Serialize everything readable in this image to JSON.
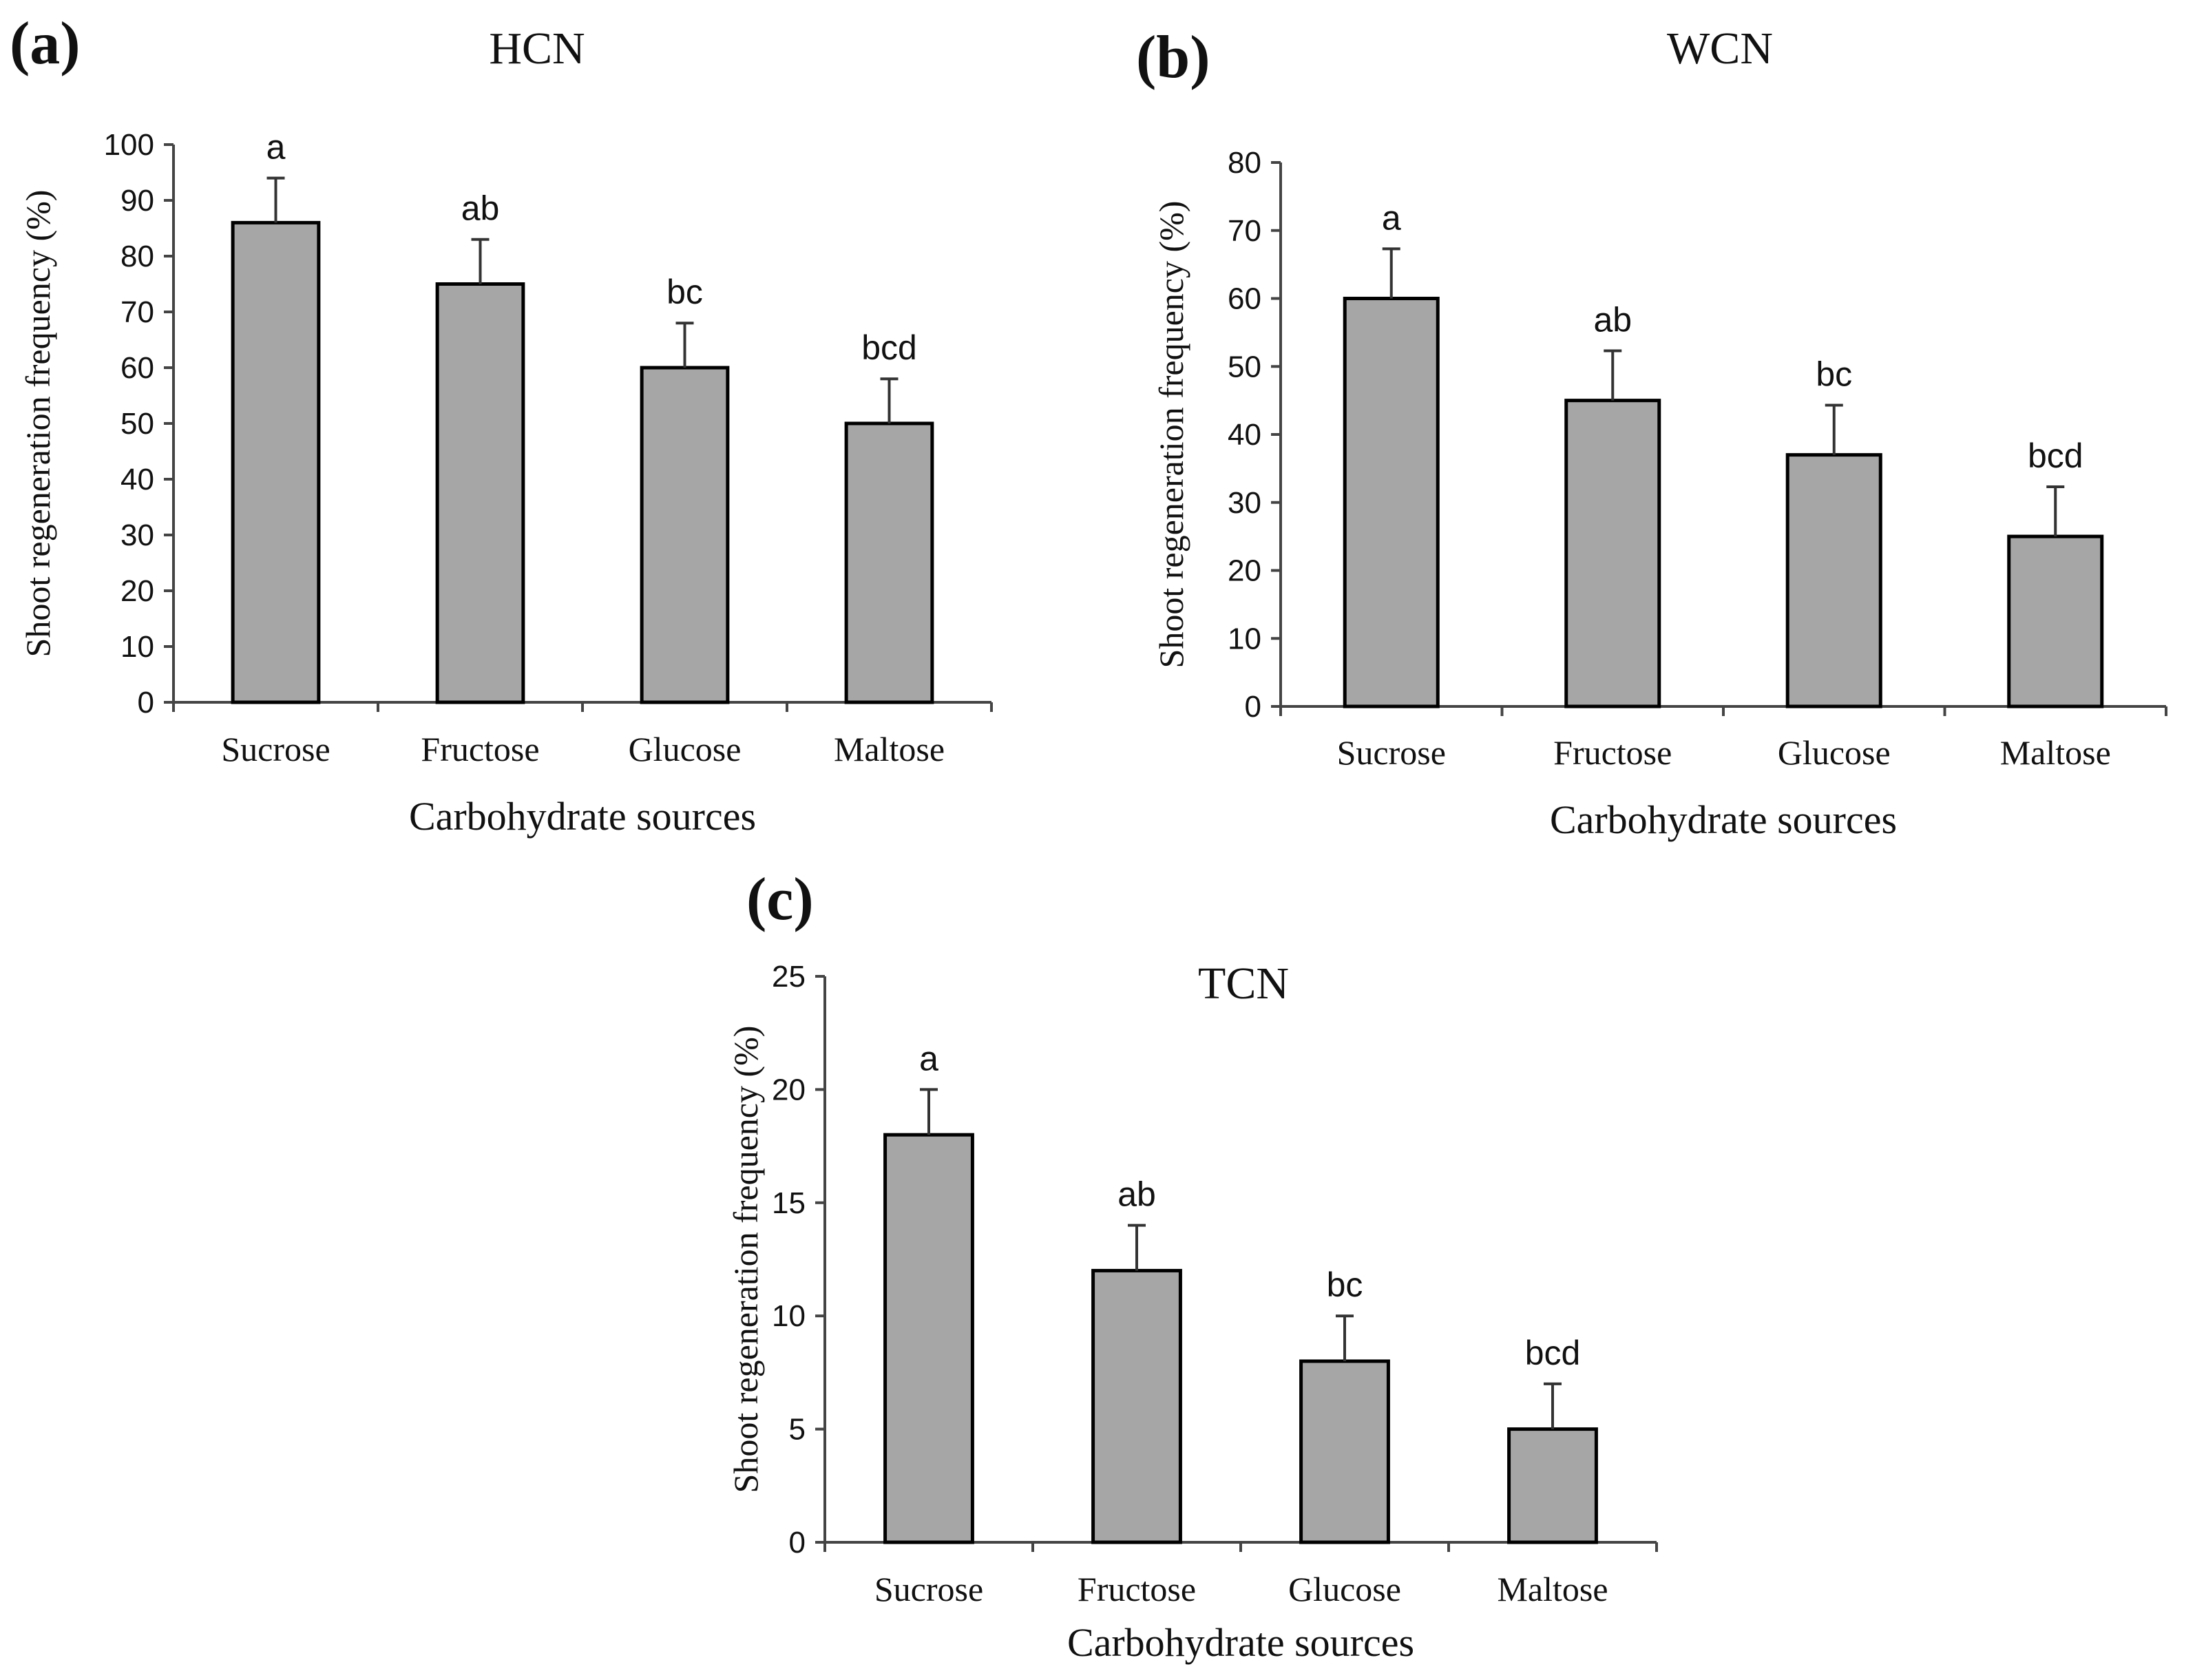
{
  "colors": {
    "bar_fill": "#a6a6a6",
    "bar_stroke": "#000000",
    "axis": "#444444"
  },
  "chart_data": [
    {
      "panel_label": "(a)",
      "type": "bar",
      "title": "HCN",
      "categories": [
        "Sucrose",
        "Fructose",
        "Glucose",
        "Maltose"
      ],
      "values": [
        86,
        75,
        60,
        50
      ],
      "errors": [
        8,
        8,
        8,
        8
      ],
      "significance": [
        "a",
        "ab",
        "bc",
        "bcd"
      ],
      "xlabel": "Carbohydrate sources",
      "ylabel": "Shoot regeneration frequency (%)",
      "ylim": [
        0,
        100
      ],
      "yticks": [
        0,
        10,
        20,
        30,
        40,
        50,
        60,
        70,
        80,
        90,
        100
      ],
      "grid": false,
      "legend": "none"
    },
    {
      "panel_label": "(b)",
      "type": "bar",
      "title": "WCN",
      "categories": [
        "Sucrose",
        "Fructose",
        "Glucose",
        "Maltose"
      ],
      "values": [
        60,
        45,
        37,
        25
      ],
      "errors": [
        7.3,
        7.3,
        7.3,
        7.3
      ],
      "significance": [
        "a",
        "ab",
        "bc",
        "bcd"
      ],
      "xlabel": "Carbohydrate sources",
      "ylabel": "Shoot regeneration frequency (%)",
      "ylim": [
        0,
        80
      ],
      "yticks": [
        0,
        10,
        20,
        30,
        40,
        50,
        60,
        70,
        80
      ],
      "grid": false,
      "legend": "none"
    },
    {
      "panel_label": "(c)",
      "type": "bar",
      "title": "TCN",
      "categories": [
        "Sucrose",
        "Fructose",
        "Glucose",
        "Maltose"
      ],
      "values": [
        18,
        12,
        8,
        5
      ],
      "errors": [
        2,
        2,
        2,
        2
      ],
      "significance": [
        "a",
        "ab",
        "bc",
        "bcd"
      ],
      "xlabel": "Carbohydrate sources",
      "ylabel": "Shoot regeneration frequency (%)",
      "ylim": [
        0,
        25
      ],
      "yticks": [
        0,
        5,
        10,
        15,
        20,
        25
      ],
      "grid": false,
      "legend": "none"
    }
  ]
}
